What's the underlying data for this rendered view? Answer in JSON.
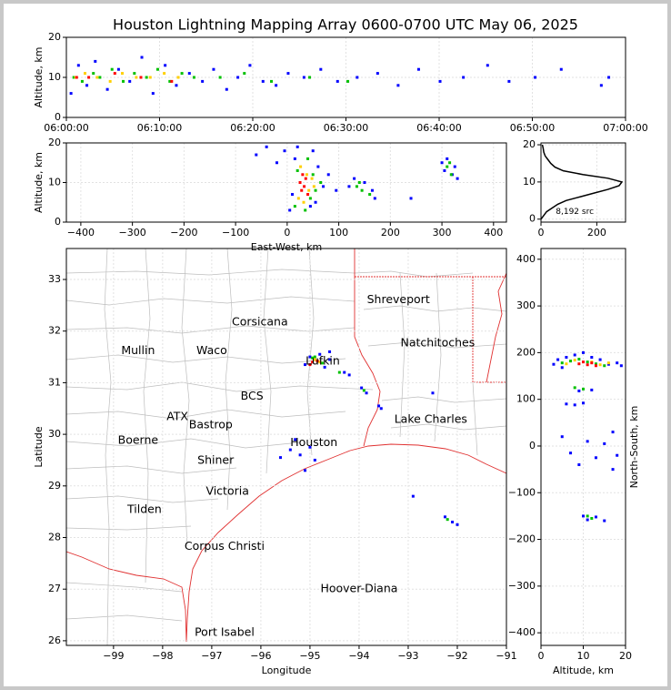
{
  "chart_data": [
    {
      "type": "scatter",
      "title": "Houston Lightning Mapping Array 0600-0700 UTC May 06, 2025",
      "ylabel": "Altitude, km",
      "grid": true,
      "xlim": [
        0,
        60
      ],
      "xticks": [
        {
          "value": 0,
          "label": "06:00:00"
        },
        {
          "value": 10,
          "label": "06:10:00"
        },
        {
          "value": 20,
          "label": "06:20:00"
        },
        {
          "value": 30,
          "label": "06:30:00"
        },
        {
          "value": 40,
          "label": "06:40:00"
        },
        {
          "value": 50,
          "label": "06:50:00"
        },
        {
          "value": 60,
          "label": "07:00:00"
        }
      ],
      "ylim": [
        0,
        20
      ],
      "yticks": [
        0,
        10,
        20
      ],
      "series": [
        {
          "color": "#0000ff",
          "x": [
            0.5,
            1.3,
            2.2,
            3.1,
            4.4,
            5.6,
            6.8,
            8.1,
            9.3,
            10.6,
            11.8,
            13.2,
            14.6,
            15.8,
            17.2,
            18.4,
            19.7,
            21.1,
            22.5,
            23.8,
            25.5,
            27.3,
            29.1,
            31.2,
            33.4,
            35.6,
            37.8,
            40.1,
            42.6,
            45.2,
            47.5,
            50.3,
            53.1,
            57.4,
            58.2
          ],
          "y": [
            6,
            13,
            8,
            14,
            7,
            12,
            9,
            15,
            6,
            13,
            8,
            11,
            9,
            12,
            7,
            10,
            13,
            9,
            8,
            11,
            10,
            12,
            9,
            10,
            11,
            8,
            12,
            9,
            10,
            13,
            9,
            10,
            12,
            8,
            10
          ]
        },
        {
          "color": "#00c000",
          "x": [
            0.8,
            1.7,
            2.9,
            3.6,
            4.9,
            6.1,
            7.3,
            8.6,
            9.8,
            11.1,
            12.4,
            13.7,
            16.5,
            19.1,
            22.0,
            26.1,
            30.2
          ],
          "y": [
            10,
            9,
            11,
            10,
            12,
            9,
            11,
            10,
            12,
            9,
            11,
            10,
            10,
            11,
            9,
            10,
            9
          ]
        },
        {
          "color": "#ffd000",
          "x": [
            1.0,
            2.0,
            3.3,
            4.7,
            6.0,
            7.5,
            9.0,
            10.5,
            12.0
          ],
          "y": [
            10,
            11,
            10,
            9,
            11,
            10,
            10,
            11,
            10
          ]
        },
        {
          "color": "#ff0000",
          "x": [
            1.1,
            2.4,
            5.2,
            8.0,
            11.3
          ],
          "y": [
            10,
            10,
            11,
            10,
            9
          ]
        }
      ]
    },
    {
      "type": "scatter",
      "xlabel": "East-West, km",
      "ylabel": "Altitude, km",
      "grid": true,
      "xlim": [
        -428,
        425
      ],
      "xticks": [
        {
          "value": -400,
          "label": "−400"
        },
        {
          "value": -300,
          "label": "−300"
        },
        {
          "value": -200,
          "label": "−200"
        },
        {
          "value": -100,
          "label": "−100"
        },
        0,
        100,
        200,
        300,
        400
      ],
      "ylim": [
        0,
        20
      ],
      "yticks": [
        0,
        10,
        20
      ],
      "series": [
        {
          "color": "#0000ff",
          "x": [
            -60,
            -40,
            -20,
            -5,
            5,
            10,
            15,
            20,
            45,
            50,
            55,
            60,
            70,
            80,
            95,
            120,
            130,
            150,
            165,
            170,
            240,
            300,
            305,
            310,
            320,
            325,
            330
          ],
          "y": [
            17,
            19,
            15,
            18,
            3,
            7,
            16,
            19,
            4,
            18,
            5,
            14,
            9,
            12,
            8,
            9,
            11,
            10,
            8,
            6,
            6,
            15,
            13,
            16,
            12,
            14,
            11
          ]
        },
        {
          "color": "#00c000",
          "x": [
            15,
            20,
            35,
            40,
            45,
            50,
            55,
            65,
            135,
            140,
            145,
            160,
            310,
            315,
            318
          ],
          "y": [
            4,
            13,
            3,
            16,
            6,
            12,
            8,
            10,
            9,
            10,
            8,
            7,
            14,
            15,
            12
          ]
        },
        {
          "color": "#ffd000",
          "x": [
            22,
            26,
            32,
            38,
            42,
            48,
            52
          ],
          "y": [
            6,
            14,
            5,
            12,
            8,
            11,
            9
          ]
        },
        {
          "color": "#ff0000",
          "x": [
            25,
            28,
            30,
            33,
            36,
            40
          ],
          "y": [
            10,
            8,
            12,
            9,
            11,
            7
          ]
        }
      ]
    },
    {
      "type": "line",
      "orientation": "horizontal",
      "color": "#000000",
      "grid": true,
      "xlim": [
        0,
        303
      ],
      "xticks": [
        0,
        200
      ],
      "ylim": [
        -0.8,
        20.5
      ],
      "yticks": [
        0,
        10,
        20
      ],
      "y": [
        0,
        1,
        2,
        3,
        4,
        5,
        6,
        7,
        8,
        9,
        10,
        11,
        12,
        13,
        14,
        15,
        16,
        17,
        18,
        19,
        20
      ],
      "values": [
        0,
        10,
        20,
        40,
        60,
        90,
        140,
        190,
        240,
        280,
        290,
        240,
        150,
        80,
        50,
        35,
        25,
        15,
        10,
        8,
        5
      ],
      "annotations": [
        {
          "text": "8,192 src",
          "x": 121,
          "y": 2,
          "color": "#000000"
        }
      ]
    },
    {
      "type": "scatter",
      "xlabel": "Longitude",
      "ylabel": "Latitude",
      "grid": true,
      "xlim": [
        -99.96,
        -91
      ],
      "xticks": [
        {
          "value": -99,
          "label": "−99"
        },
        {
          "value": -98,
          "label": "−98"
        },
        {
          "value": -97,
          "label": "−97"
        },
        {
          "value": -96,
          "label": "−96"
        },
        {
          "value": -95,
          "label": "−95"
        },
        {
          "value": -94,
          "label": "−94"
        },
        {
          "value": -93,
          "label": "−93"
        },
        {
          "value": -92,
          "label": "−92"
        },
        {
          "value": -91,
          "label": "−91"
        }
      ],
      "ylim": [
        25.91,
        33.6
      ],
      "yticks": [
        26,
        27,
        28,
        29,
        30,
        31,
        32,
        33
      ],
      "series": [
        {
          "color": "#0000ff",
          "x": [
            -95.0,
            -94.8,
            -94.6,
            -94.7,
            -95.1,
            -94.3,
            -94.2,
            -93.95,
            -93.85,
            -93.6,
            -93.55,
            -95.3,
            -95.2,
            -95.0,
            -94.9,
            -95.4,
            -95.1,
            -92.25,
            -92.1,
            -92.0,
            -92.9,
            -92.5,
            -95.6,
            -94.6
          ],
          "y": [
            31.5,
            31.55,
            31.45,
            31.3,
            31.35,
            31.2,
            31.15,
            30.9,
            30.8,
            30.55,
            30.5,
            29.9,
            29.6,
            29.75,
            29.5,
            29.7,
            29.3,
            28.4,
            28.3,
            28.25,
            28.8,
            30.8,
            29.55,
            31.6
          ]
        },
        {
          "color": "#00c000",
          "x": [
            -94.95,
            -94.85,
            -94.75,
            -94.4,
            -93.9,
            -92.2,
            -94.9
          ],
          "y": [
            31.48,
            31.42,
            31.38,
            31.2,
            30.85,
            28.35,
            31.5
          ]
        },
        {
          "color": "#ffd000",
          "x": [
            -94.9,
            -94.8
          ],
          "y": [
            31.45,
            31.4
          ]
        },
        {
          "color": "#ff0000",
          "x": [
            -94.95,
            -94.85,
            -95.0
          ],
          "y": [
            31.4,
            31.42,
            31.35
          ]
        }
      ],
      "annotations": [
        {
          "text": "Shreveport",
          "x": -93.2,
          "y": 32.6,
          "color": "#000000"
        },
        {
          "text": "Corsicana",
          "x": -96.02,
          "y": 32.17,
          "color": "#000000"
        },
        {
          "text": "Natchitoches",
          "x": -92.4,
          "y": 31.77,
          "color": "#000000"
        },
        {
          "text": "Mullin",
          "x": -98.5,
          "y": 31.62,
          "color": "#ff8c42"
        },
        {
          "text": "Waco",
          "x": -97.0,
          "y": 31.62,
          "color": "#000000"
        },
        {
          "text": "Lufkin",
          "x": -94.74,
          "y": 31.41,
          "color": "#000000"
        },
        {
          "text": "BCS",
          "x": -96.18,
          "y": 30.73,
          "color": "#b03030"
        },
        {
          "text": "ATX",
          "x": -97.7,
          "y": 30.34,
          "color": "#ff8c42"
        },
        {
          "text": "Bastrop",
          "x": -97.02,
          "y": 30.18,
          "color": "#000000"
        },
        {
          "text": "Lake Charles",
          "x": -92.54,
          "y": 30.28,
          "color": "#000000"
        },
        {
          "text": "Boerne",
          "x": -98.5,
          "y": 29.88,
          "color": "#000000"
        },
        {
          "text": "Houston",
          "x": -94.92,
          "y": 29.83,
          "color": "#ffa500"
        },
        {
          "text": "Shiner",
          "x": -96.92,
          "y": 29.49,
          "color": "#000000"
        },
        {
          "text": "Victoria",
          "x": -96.68,
          "y": 28.89,
          "color": "#000000"
        },
        {
          "text": "Tilden",
          "x": -98.37,
          "y": 28.54,
          "color": "#000000"
        },
        {
          "text": "Corpus Christi",
          "x": -96.74,
          "y": 27.82,
          "color": "#000000"
        },
        {
          "text": "Hoover-Diana",
          "x": -94.0,
          "y": 27.0,
          "color": "#0000ff"
        },
        {
          "text": "Port Isabel",
          "x": -96.74,
          "y": 26.16,
          "color": "#000000"
        }
      ]
    },
    {
      "type": "scatter",
      "xlabel": "Altitude, km",
      "ylabel": "North-South, km",
      "ylabel_side": "right",
      "grid": true,
      "xlim": [
        0,
        20
      ],
      "xticks": [
        0,
        10,
        20
      ],
      "ylim": [
        -427,
        423
      ],
      "yticks": [
        {
          "value": -400,
          "label": "−400"
        },
        {
          "value": -300,
          "label": "−300"
        },
        {
          "value": -200,
          "label": "−200"
        },
        {
          "value": -100,
          "label": "−100"
        },
        0,
        100,
        200,
        300,
        400
      ],
      "series": [
        {
          "color": "#0000ff",
          "x": [
            3,
            4,
            5,
            6,
            8,
            10,
            12,
            14,
            16,
            18,
            19,
            5,
            7,
            9,
            11,
            13,
            15,
            17,
            6,
            8,
            10,
            12,
            9,
            10,
            11,
            13,
            15,
            18,
            17
          ],
          "y": [
            175,
            185,
            168,
            190,
            195,
            200,
            190,
            185,
            175,
            178,
            172,
            20,
            -15,
            -40,
            10,
            -25,
            5,
            -50,
            90,
            88,
            92,
            120,
            118,
            -150,
            -158,
            -152,
            -160,
            -20,
            30
          ]
        },
        {
          "color": "#00c000",
          "x": [
            5,
            7,
            9,
            11,
            13,
            15,
            10,
            8,
            12,
            11
          ],
          "y": [
            178,
            182,
            186,
            180,
            176,
            172,
            122,
            125,
            -155,
            -150
          ]
        },
        {
          "color": "#ffd000",
          "x": [
            6,
            8,
            12,
            14,
            16
          ],
          "y": [
            176,
            184,
            180,
            174,
            178
          ]
        },
        {
          "color": "#ff0000",
          "x": [
            9,
            10,
            11,
            12,
            13
          ],
          "y": [
            176,
            180,
            174,
            178,
            172
          ]
        }
      ]
    }
  ]
}
